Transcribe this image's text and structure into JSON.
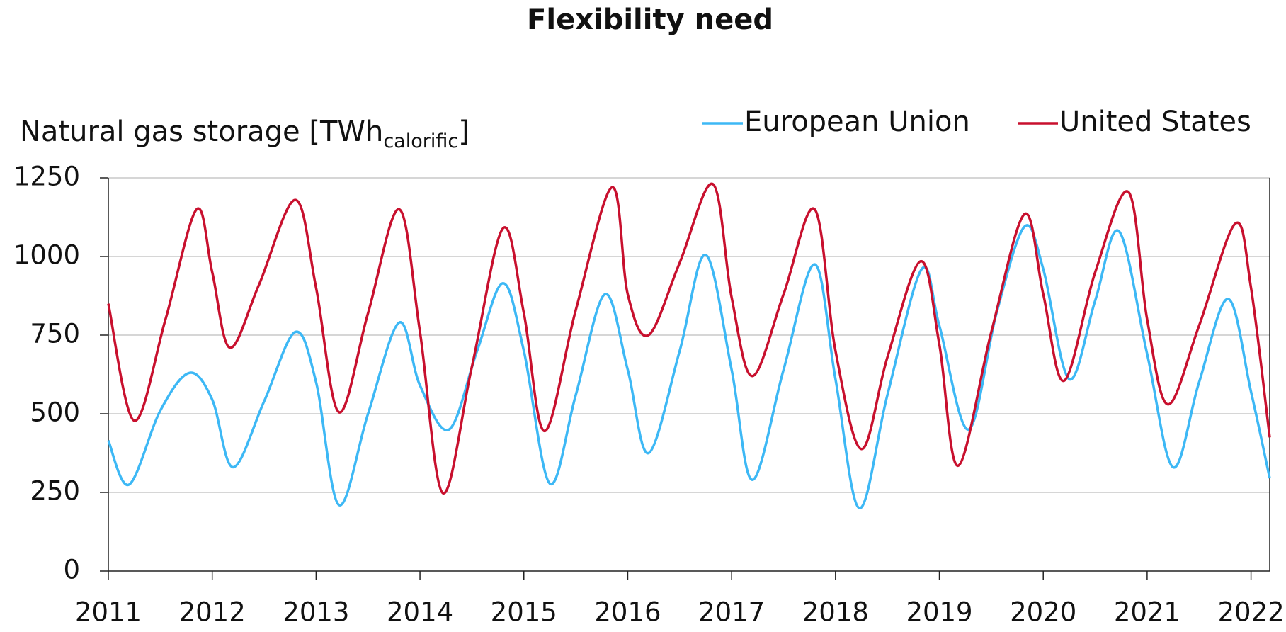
{
  "chart_data": {
    "type": "line",
    "title": "Flexibility need",
    "y_label": "Natural gas storage [TWh",
    "y_label_sub": "calorific",
    "y_label_end": "]",
    "xlim": [
      2011,
      2022.18
    ],
    "xticks": [
      2011,
      2012,
      2013,
      2014,
      2015,
      2016,
      2017,
      2018,
      2019,
      2020,
      2021,
      2022
    ],
    "ylim": [
      0,
      1250
    ],
    "yticks": [
      0,
      250,
      500,
      750,
      1000,
      1250
    ],
    "grid": true,
    "legend": "top-right",
    "series": [
      {
        "name": "European Union",
        "color": "#3db8f5",
        "x": [
          2011.0,
          2011.2,
          2011.5,
          2011.78,
          2012.0,
          2012.2,
          2012.5,
          2012.8,
          2013.0,
          2013.22,
          2013.5,
          2013.8,
          2014.0,
          2014.28,
          2014.55,
          2014.8,
          2015.0,
          2015.25,
          2015.5,
          2015.78,
          2016.0,
          2016.2,
          2016.5,
          2016.75,
          2017.0,
          2017.2,
          2017.5,
          2017.8,
          2018.0,
          2018.23,
          2018.5,
          2018.83,
          2019.0,
          2019.28,
          2019.55,
          2019.82,
          2020.0,
          2020.25,
          2020.5,
          2020.73,
          2021.0,
          2021.25,
          2021.5,
          2021.78,
          2022.0,
          2022.18
        ],
        "values": [
          415,
          275,
          510,
          630,
          545,
          330,
          540,
          760,
          600,
          210,
          500,
          790,
          590,
          450,
          700,
          915,
          700,
          278,
          560,
          880,
          640,
          375,
          700,
          1005,
          640,
          290,
          640,
          975,
          610,
          200,
          560,
          960,
          780,
          450,
          820,
          1095,
          960,
          610,
          860,
          1080,
          690,
          330,
          600,
          865,
          570,
          295
        ]
      },
      {
        "name": "United States",
        "color": "#c8102e",
        "x": [
          2011.0,
          2011.25,
          2011.55,
          2011.85,
          2012.0,
          2012.17,
          2012.45,
          2012.8,
          2013.0,
          2013.22,
          2013.5,
          2013.8,
          2014.0,
          2014.22,
          2014.5,
          2014.8,
          2015.0,
          2015.2,
          2015.5,
          2015.85,
          2016.0,
          2016.2,
          2016.5,
          2016.82,
          2017.0,
          2017.2,
          2017.5,
          2017.8,
          2018.0,
          2018.25,
          2018.5,
          2018.82,
          2019.0,
          2019.18,
          2019.5,
          2019.82,
          2020.0,
          2020.2,
          2020.5,
          2020.82,
          2021.0,
          2021.2,
          2021.5,
          2021.85,
          2022.0,
          2022.18
        ],
        "values": [
          850,
          478,
          800,
          1150,
          950,
          710,
          910,
          1180,
          900,
          505,
          820,
          1150,
          760,
          248,
          650,
          1090,
          820,
          445,
          830,
          1220,
          880,
          750,
          980,
          1230,
          870,
          620,
          880,
          1150,
          700,
          388,
          680,
          985,
          720,
          335,
          760,
          1135,
          880,
          605,
          950,
          1205,
          800,
          530,
          780,
          1105,
          900,
          425
        ]
      }
    ]
  }
}
